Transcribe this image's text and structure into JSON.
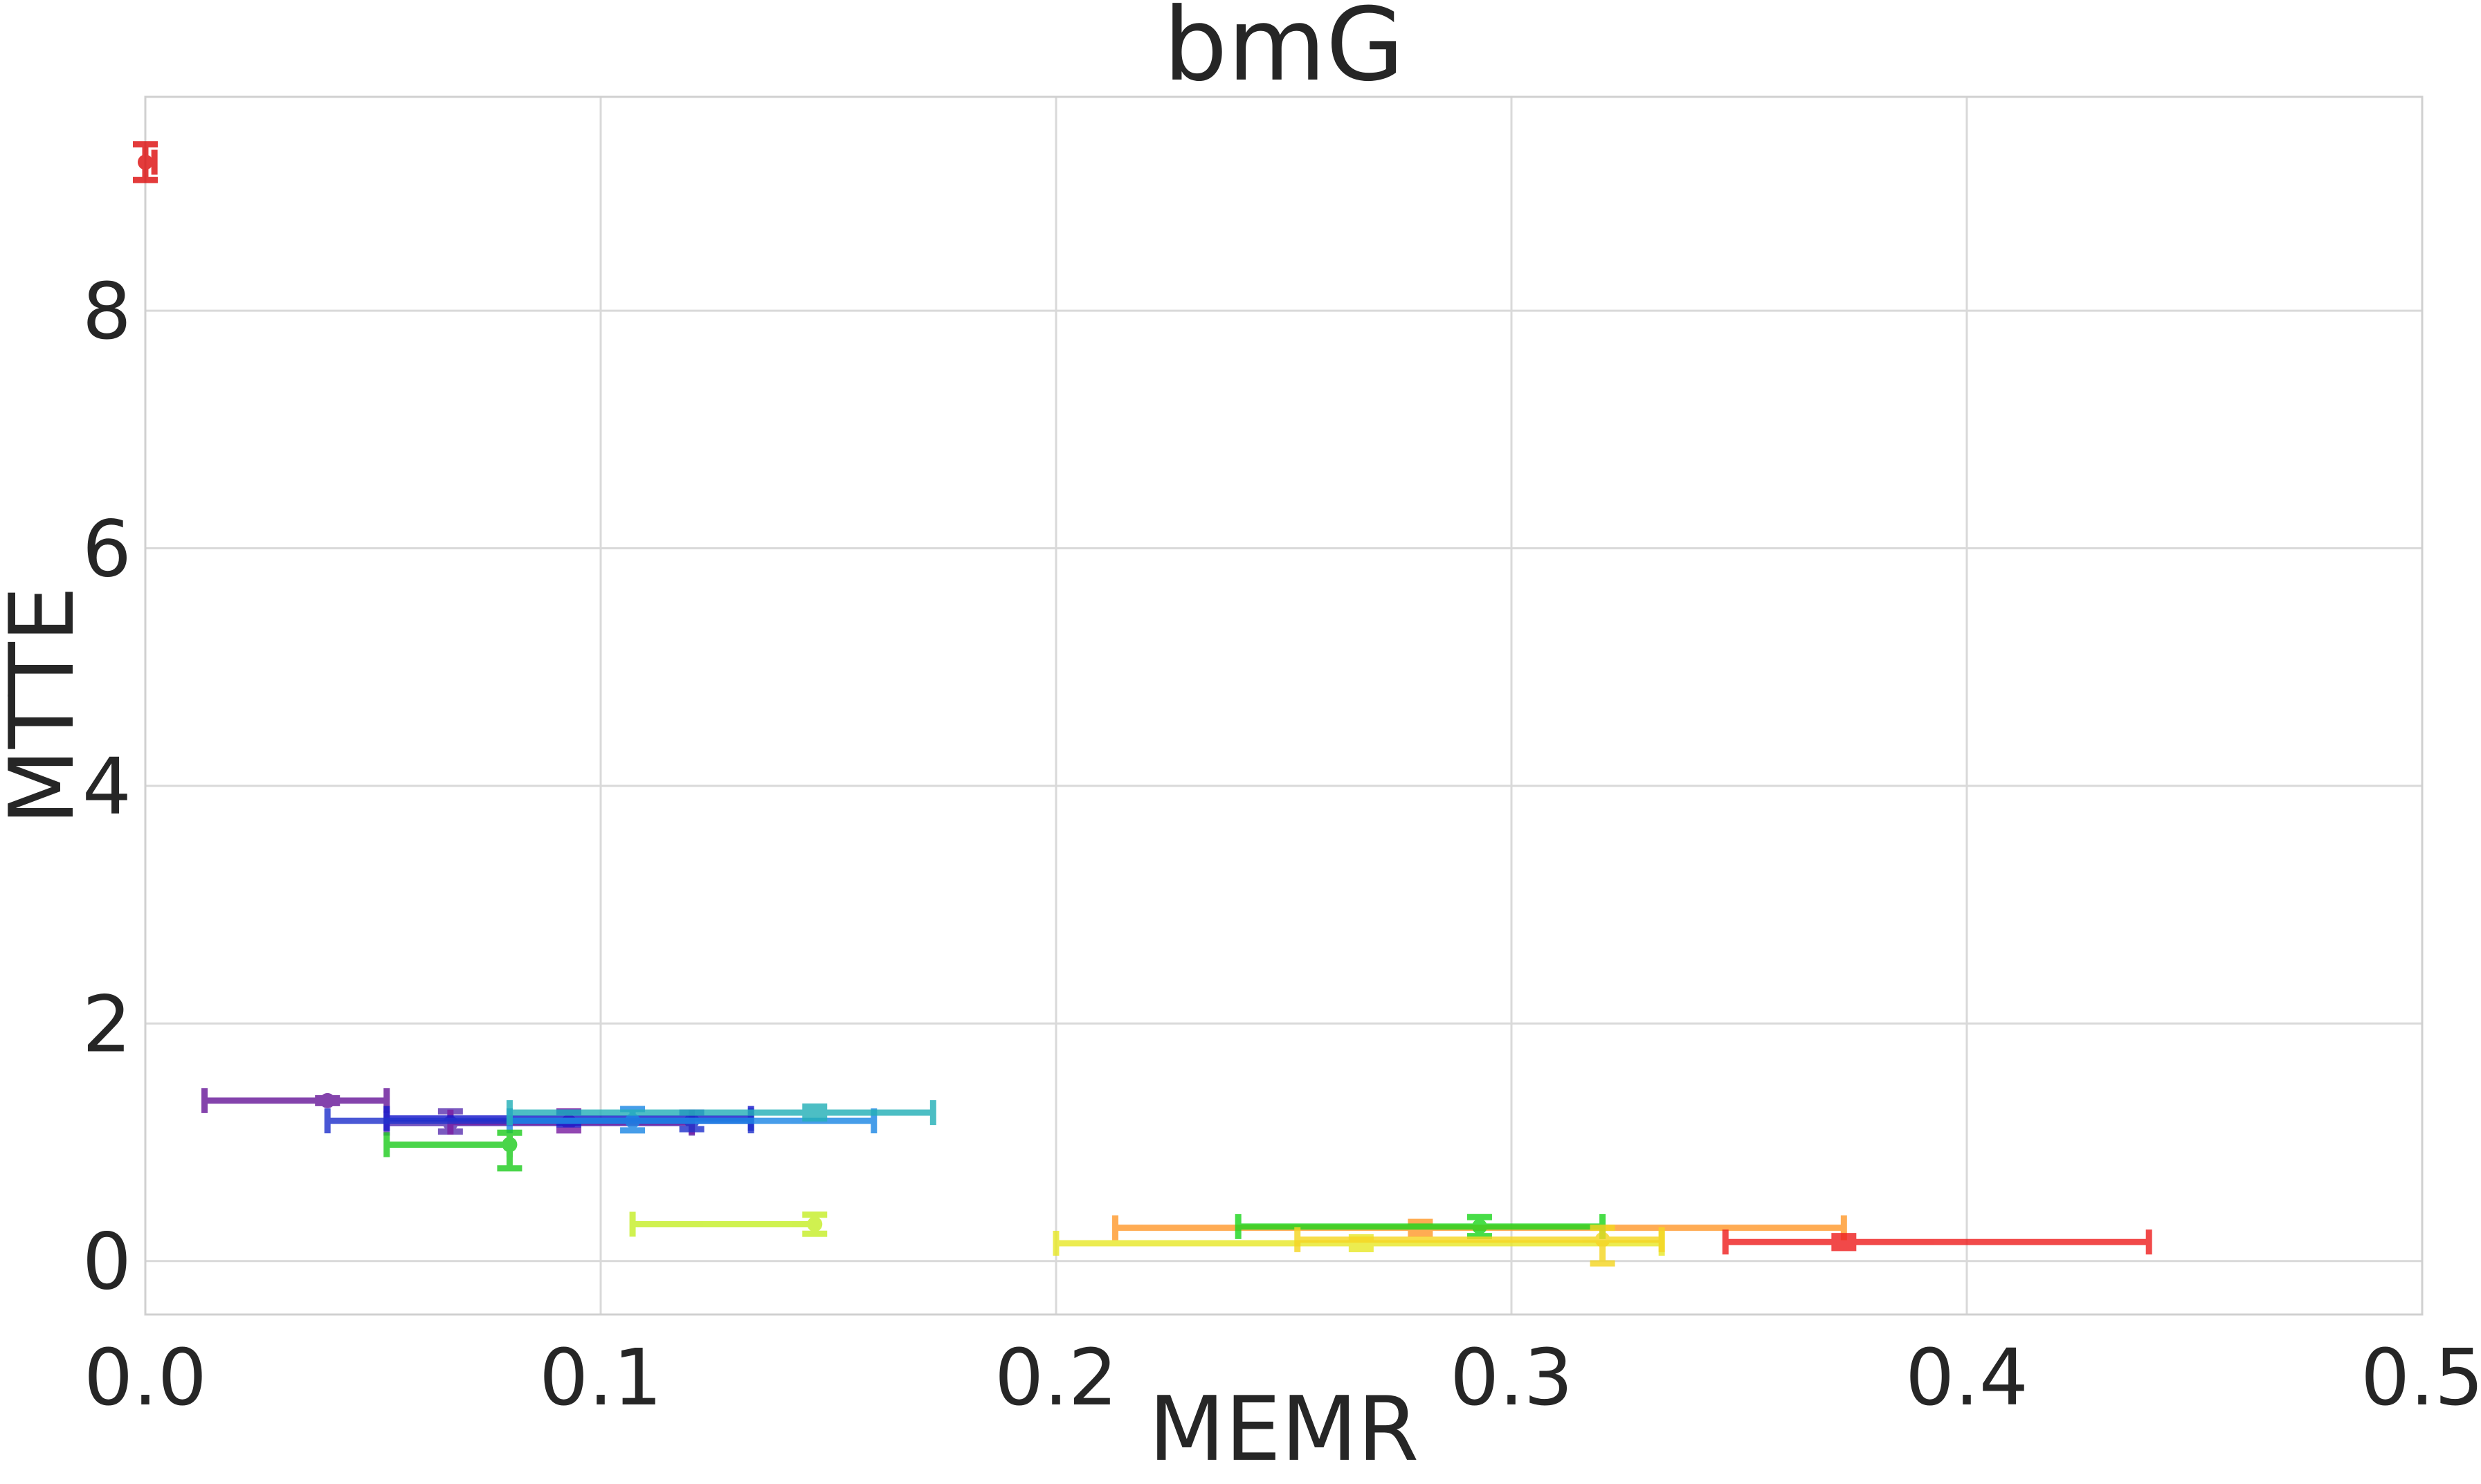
{
  "chart_data": {
    "type": "scatter",
    "title": "bmG",
    "xlabel": "MEMR",
    "ylabel": "MTTE",
    "xlim": [
      0.0,
      0.5
    ],
    "ylim": [
      -0.45,
      9.8
    ],
    "xticks": [
      0.0,
      0.1,
      0.2,
      0.3,
      0.4,
      0.5
    ],
    "xtick_labels": [
      "0.0",
      "0.1",
      "0.2",
      "0.3",
      "0.4",
      "0.5"
    ],
    "yticks": [
      0,
      2,
      4,
      6,
      8
    ],
    "ytick_labels": [
      "0",
      "2",
      "4",
      "6",
      "8"
    ],
    "grid": true,
    "legend": "none",
    "points": [
      {
        "x": 0.0,
        "y": 9.25,
        "xerr": [
          0.0,
          0.002
        ],
        "yerr": [
          0.15,
          0.15
        ],
        "color": "#dd1111"
      },
      {
        "x": 0.04,
        "y": 1.35,
        "xerr": [
          0.013,
          0.053
        ],
        "yerr": [
          0.02,
          0.02
        ],
        "color": "#6a1b9a"
      },
      {
        "x": 0.067,
        "y": 1.16,
        "xerr": [
          0.053,
          0.12
        ],
        "yerr": [
          0.07,
          0.1
        ],
        "color": "#5e35b1"
      },
      {
        "x": 0.093,
        "y": 1.17,
        "xerr": [
          0.067,
          0.12
        ],
        "yerr": [
          0.07,
          0.09
        ],
        "color": "#7b1fa2"
      },
      {
        "x": 0.093,
        "y": 1.2,
        "xerr": [
          0.053,
          0.133
        ],
        "yerr": [
          0.05,
          0.05
        ],
        "color": "#1a1acc"
      },
      {
        "x": 0.12,
        "y": 1.18,
        "xerr": [
          0.04,
          0.133
        ],
        "yerr": [
          0.07,
          0.07
        ],
        "color": "#2233cc"
      },
      {
        "x": 0.107,
        "y": 1.18,
        "xerr": [
          0.08,
          0.16
        ],
        "yerr": [
          0.08,
          0.1
        ],
        "color": "#1e88e5"
      },
      {
        "x": 0.147,
        "y": 1.25,
        "xerr": [
          0.08,
          0.173
        ],
        "yerr": [
          0.05,
          0.05
        ],
        "color": "#26b0b8"
      },
      {
        "x": 0.08,
        "y": 0.98,
        "xerr": [
          0.053,
          0.08
        ],
        "yerr": [
          0.2,
          0.1
        ],
        "color": "#22cc22"
      },
      {
        "x": 0.147,
        "y": 0.31,
        "xerr": [
          0.107,
          0.147
        ],
        "yerr": [
          0.08,
          0.08
        ],
        "color": "#c6ef2a"
      },
      {
        "x": 0.28,
        "y": 0.28,
        "xerr": [
          0.213,
          0.373
        ],
        "yerr": [
          0.05,
          0.05
        ],
        "color": "#ff9a2e"
      },
      {
        "x": 0.293,
        "y": 0.29,
        "xerr": [
          0.24,
          0.32
        ],
        "yerr": [
          0.08,
          0.08
        ],
        "color": "#1fd61f"
      },
      {
        "x": 0.267,
        "y": 0.15,
        "xerr": [
          0.2,
          0.333
        ],
        "yerr": [
          0.05,
          0.05
        ],
        "color": "#e8e82a"
      },
      {
        "x": 0.32,
        "y": 0.18,
        "xerr": [
          0.253,
          0.333
        ],
        "yerr": [
          0.2,
          0.1
        ],
        "color": "#f5d623"
      },
      {
        "x": 0.373,
        "y": 0.16,
        "xerr": [
          0.347,
          0.44
        ],
        "yerr": [
          0.05,
          0.05
        ],
        "color": "#ee2222"
      }
    ]
  }
}
